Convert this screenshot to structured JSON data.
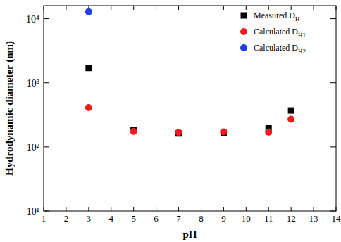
{
  "chart_data": {
    "type": "scatter",
    "x_label": "pH",
    "y_label": "Hydrodynamic diameter (nm)",
    "xlim": [
      1,
      14
    ],
    "xticks": [
      1,
      2,
      3,
      4,
      5,
      6,
      7,
      8,
      9,
      10,
      11,
      12,
      13,
      14
    ],
    "ylim": [
      10,
      16000
    ],
    "yticks": [
      {
        "value": 10,
        "label": "10¹"
      },
      {
        "value": 100,
        "label": "10²"
      },
      {
        "value": 1000,
        "label": "10³"
      },
      {
        "value": 10000,
        "label": "10⁴"
      }
    ],
    "log": "y",
    "grid": false,
    "legend": "top-right",
    "series": [
      {
        "name": "Measured DH",
        "color": "#000000",
        "marker": "square",
        "x": [
          3,
          5,
          7,
          9,
          11,
          12
        ],
        "values": [
          1700,
          185,
          162,
          165,
          195,
          370
        ]
      },
      {
        "name": "Calculated DH1",
        "color": "#ee1c1c",
        "marker": "circle",
        "x": [
          3,
          5,
          7,
          9,
          11,
          12
        ],
        "values": [
          410,
          175,
          168,
          172,
          170,
          270
        ]
      },
      {
        "name": "Calculated DH2",
        "color": "#1f3fe8",
        "marker": "circle",
        "x": [
          3
        ],
        "values": [
          12800
        ]
      }
    ]
  }
}
